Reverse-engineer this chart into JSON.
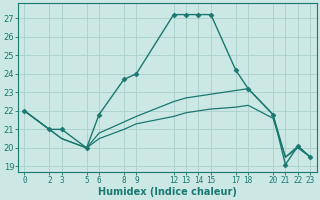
{
  "xlabel": "Humidex (Indice chaleur)",
  "background_color": "#cce8e4",
  "grid_color": "#aad0cc",
  "line_color": "#1a7870",
  "xlim": [
    -0.5,
    23.5
  ],
  "ylim": [
    18.7,
    27.8
  ],
  "yticks": [
    19,
    20,
    21,
    22,
    23,
    24,
    25,
    26,
    27
  ],
  "xticks": [
    0,
    2,
    3,
    5,
    6,
    8,
    9,
    12,
    13,
    14,
    15,
    17,
    18,
    20,
    21,
    22,
    23
  ],
  "lines": [
    {
      "x": [
        0,
        2,
        3,
        5,
        6,
        8,
        9,
        12,
        13,
        14,
        15,
        17,
        18,
        20,
        21,
        22,
        23
      ],
      "y": [
        22,
        21,
        21,
        20,
        21.8,
        23.7,
        24.0,
        27.2,
        27.2,
        27.2,
        27.2,
        24.2,
        23.2,
        21.8,
        19.1,
        20.1,
        19.5
      ],
      "marker": "D",
      "markersize": 2.5,
      "linewidth": 1.0
    },
    {
      "x": [
        0,
        2,
        3,
        5,
        6,
        8,
        9,
        12,
        13,
        14,
        15,
        17,
        18,
        20,
        21,
        22,
        23
      ],
      "y": [
        22,
        21,
        20.5,
        20.0,
        20.8,
        21.4,
        21.7,
        22.5,
        22.7,
        22.8,
        22.9,
        23.1,
        23.2,
        21.8,
        19.5,
        20.1,
        19.5
      ],
      "marker": null,
      "linewidth": 0.9
    },
    {
      "x": [
        0,
        2,
        3,
        5,
        6,
        8,
        9,
        12,
        13,
        14,
        15,
        17,
        18,
        20,
        21,
        22,
        23
      ],
      "y": [
        22,
        21,
        20.5,
        20.0,
        20.5,
        21.0,
        21.3,
        21.7,
        21.9,
        22.0,
        22.1,
        22.2,
        22.3,
        21.6,
        19.5,
        20.0,
        19.5
      ],
      "marker": null,
      "linewidth": 0.9
    }
  ]
}
